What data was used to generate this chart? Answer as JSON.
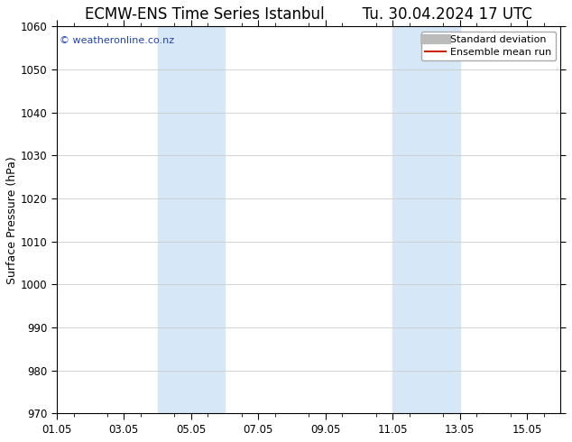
{
  "title": "ECMW-ENS Time Series Istanbul",
  "title2": "Tu. 30.04.2024 17 UTC",
  "ylabel": "Surface Pressure (hPa)",
  "ylim": [
    970,
    1060
  ],
  "yticks": [
    970,
    980,
    990,
    1000,
    1010,
    1020,
    1030,
    1040,
    1050,
    1060
  ],
  "x_start": "2024-05-01",
  "x_end": "2024-05-15 23:59",
  "xtick_labels": [
    "01.05",
    "03.05",
    "05.05",
    "07.05",
    "09.05",
    "11.05",
    "13.05",
    "15.05"
  ],
  "xtick_days": [
    1,
    3,
    5,
    7,
    9,
    11,
    13,
    15
  ],
  "shaded_regions": [
    {
      "xmin_day": 4,
      "xmax_day": 6
    },
    {
      "xmin_day": 11,
      "xmax_day": 13
    }
  ],
  "shade_color": "#d6e8f7",
  "watermark": "© weatheronline.co.nz",
  "watermark_color": "#2244aa",
  "legend_items": [
    {
      "label": "Standard deviation",
      "color": "#bbbbbb",
      "lw": 8,
      "ls": "-"
    },
    {
      "label": "Ensemble mean run",
      "color": "#cc2200",
      "lw": 1.5,
      "ls": "-"
    }
  ],
  "background_color": "#ffffff",
  "grid_color": "#cccccc",
  "title_fontsize": 12,
  "axis_label_fontsize": 9,
  "tick_fontsize": 8.5,
  "legend_fontsize": 8
}
